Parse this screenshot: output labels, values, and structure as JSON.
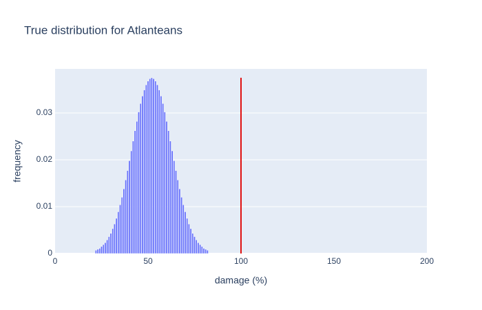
{
  "chart_data": {
    "type": "bar",
    "title": "True distribution for Atlanteans",
    "x_label": "damage (%)",
    "y_label": "frequency",
    "x": [
      22,
      23,
      24,
      25,
      26,
      27,
      28,
      29,
      30,
      31,
      32,
      33,
      34,
      35,
      36,
      37,
      38,
      39,
      40,
      41,
      42,
      43,
      44,
      45,
      46,
      47,
      48,
      49,
      50,
      51,
      52,
      53,
      54,
      55,
      56,
      57,
      58,
      59,
      60,
      61,
      62,
      63,
      64,
      65,
      66,
      67,
      68,
      69,
      70,
      71,
      72,
      73,
      74,
      75,
      76,
      77,
      78,
      79,
      80,
      81,
      82
    ],
    "values": [
      0.0007,
      0.0009,
      0.0011,
      0.0015,
      0.0019,
      0.0023,
      0.0029,
      0.0036,
      0.0043,
      0.0053,
      0.0063,
      0.0075,
      0.0089,
      0.0104,
      0.012,
      0.0138,
      0.0157,
      0.0177,
      0.0198,
      0.0219,
      0.024,
      0.0262,
      0.0282,
      0.0302,
      0.032,
      0.0336,
      0.0349,
      0.036,
      0.0368,
      0.0373,
      0.0375,
      0.0373,
      0.0368,
      0.036,
      0.0349,
      0.0336,
      0.032,
      0.0302,
      0.0282,
      0.0262,
      0.024,
      0.0219,
      0.0198,
      0.0177,
      0.0157,
      0.0138,
      0.012,
      0.0104,
      0.0089,
      0.0075,
      0.0063,
      0.0053,
      0.0043,
      0.0036,
      0.0029,
      0.0023,
      0.0019,
      0.0015,
      0.0011,
      0.0009,
      0.0007
    ],
    "color": "#636efa",
    "vline": {
      "x": 100,
      "y": [
        0,
        0.0375
      ],
      "color": "#e01010"
    },
    "xlim": [
      0,
      200
    ],
    "xticks": [
      0,
      50,
      100,
      150,
      200
    ],
    "ylim": [
      0,
      0.0394
    ],
    "yticks": [
      0,
      0.01,
      0.02,
      0.03
    ],
    "grid": true
  }
}
